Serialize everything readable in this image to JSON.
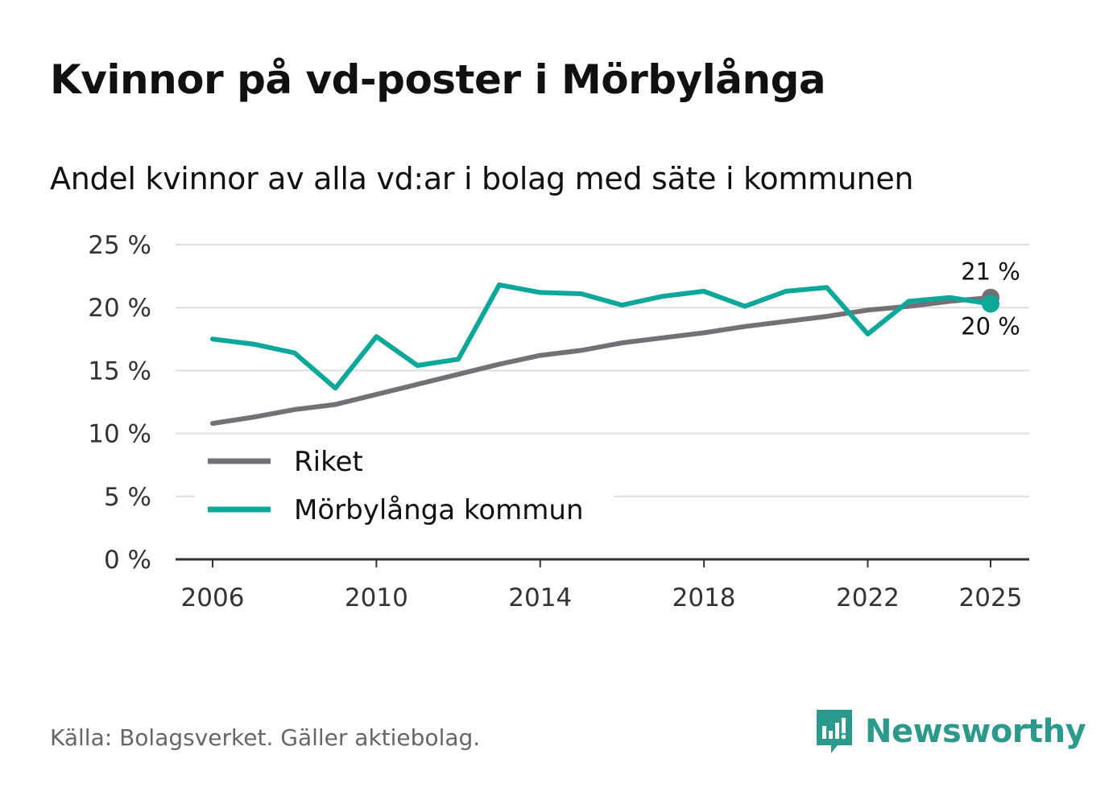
{
  "title": "Kvinnor på vd-poster i Mörbylånga",
  "subtitle": "Andel kvinnor av alla vd:ar i bolag med säte i kommunen",
  "source": "Källa: Bolagsverket. Gäller aktiebolag.",
  "brand": {
    "name": "Newsworthy",
    "color": "#2b9a8c"
  },
  "chart_data": {
    "type": "line",
    "x": [
      2006,
      2007,
      2008,
      2009,
      2010,
      2011,
      2012,
      2013,
      2014,
      2015,
      2016,
      2017,
      2018,
      2019,
      2020,
      2021,
      2022,
      2023,
      2024,
      2025
    ],
    "series": [
      {
        "name": "Riket",
        "color": "#737076",
        "values": [
          10.8,
          11.3,
          11.9,
          12.3,
          13.1,
          13.9,
          14.7,
          15.5,
          16.2,
          16.6,
          17.2,
          17.6,
          18.0,
          18.5,
          18.9,
          19.3,
          19.8,
          20.1,
          20.5,
          20.8
        ]
      },
      {
        "name": "Mörbylånga kommun",
        "color": "#0ea89a",
        "values": [
          17.5,
          17.1,
          16.4,
          13.6,
          17.7,
          15.4,
          15.9,
          21.8,
          21.2,
          21.1,
          20.2,
          20.9,
          21.3,
          20.1,
          21.3,
          21.6,
          17.9,
          20.5,
          20.8,
          20.3
        ]
      }
    ],
    "end_labels": [
      "21 %",
      "20 %"
    ],
    "ylim": [
      0,
      25
    ],
    "yticks": [
      0,
      5,
      10,
      15,
      20,
      25
    ],
    "ytick_labels": [
      "0 %",
      "5 %",
      "10 %",
      "15 %",
      "20 %",
      "25 %"
    ],
    "xticks": [
      2006,
      2010,
      2014,
      2018,
      2022,
      2025
    ],
    "xtick_labels": [
      "2006",
      "2010",
      "2014",
      "2018",
      "2022",
      "2025"
    ],
    "legend": "bottom-left",
    "grid": true,
    "xlabel": "",
    "ylabel": ""
  }
}
